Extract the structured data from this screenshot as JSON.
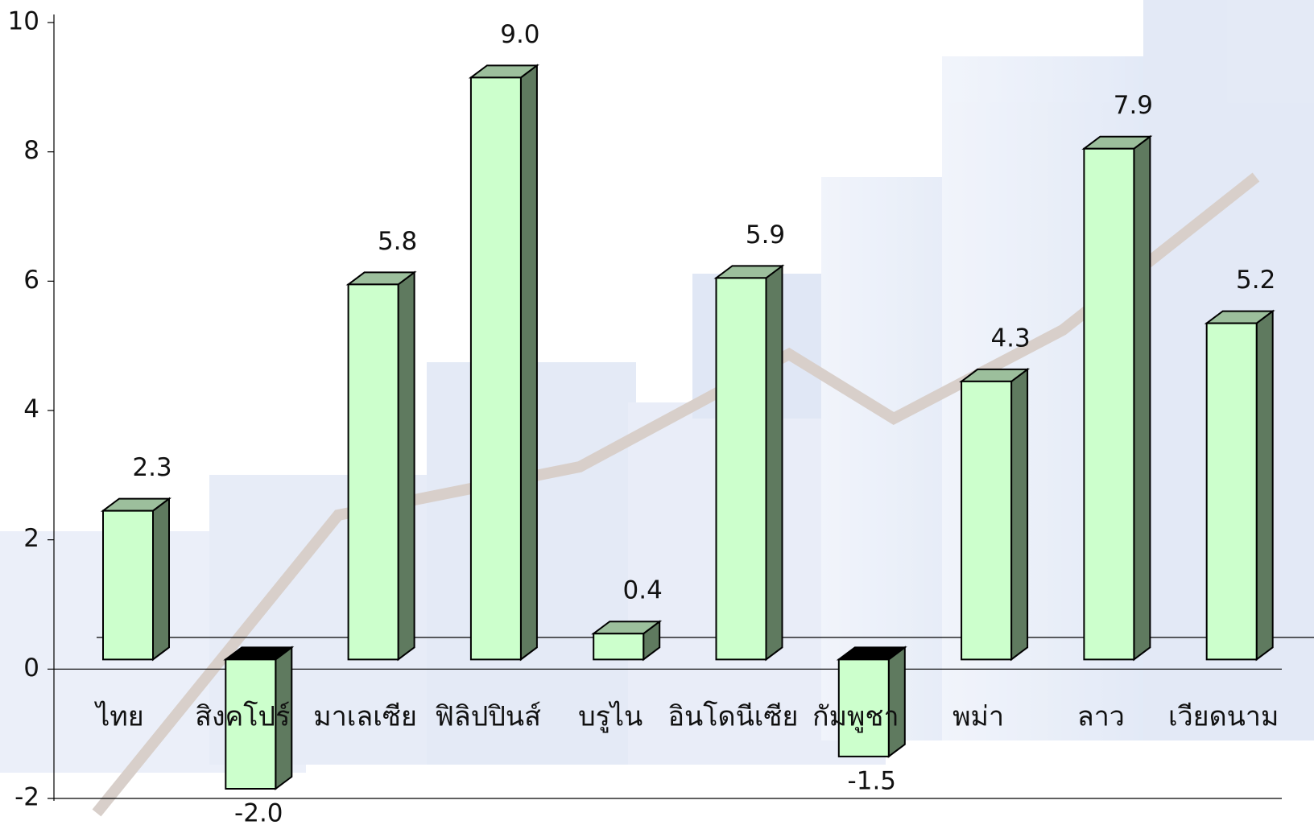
{
  "chart_data": {
    "type": "bar3d",
    "categories": [
      "ไทย",
      "สิงคโปร์",
      "มาเลเซีย",
      "ฟิลิปปินส์",
      "บรูไน",
      "อินโดนีเซีย",
      "กัมพูชา",
      "พม่า",
      "ลาว",
      "เวียดนาม"
    ],
    "values": [
      2.3,
      -2.0,
      5.8,
      9.0,
      0.4,
      5.9,
      -1.5,
      4.3,
      7.9,
      5.2
    ],
    "value_labels": [
      "2.3",
      "-2.0",
      "5.8",
      "9.0",
      "0.4",
      "5.9",
      "-1.5",
      "4.3",
      "7.9",
      "5.2"
    ],
    "color": "#ccffcc",
    "ylim": [
      -2,
      10
    ],
    "yticks": [
      -2,
      0,
      2,
      4,
      6,
      8,
      10
    ]
  }
}
